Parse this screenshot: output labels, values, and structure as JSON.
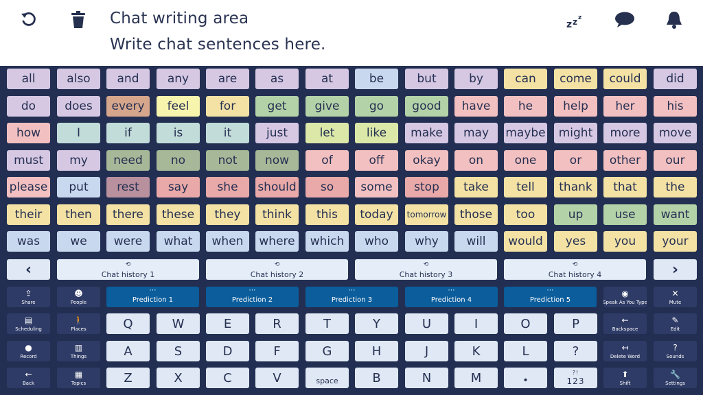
{
  "header": {
    "title": "Chat writing area",
    "message": "Write chat sentences here.",
    "icons": [
      "undo-icon",
      "trash-icon",
      "sleep-icon",
      "speech-bubble-icon",
      "bell-icon"
    ]
  },
  "colors": {
    "background": "#232f52",
    "lilac": "#d6c8e3",
    "yellow": "#f3e2a4",
    "pale_yellow": "#f7f4ae",
    "green": "#b4d2a8",
    "sage": "#a7b898",
    "teal": "#c2dcd9",
    "pink": "#f2c0c0",
    "salmon": "#e8a9a8",
    "rose": "#b8909e",
    "orange": "#d6a68c",
    "blue_key": "#dfe8f4",
    "prediction": "#0b5d9b",
    "side": "#2e3b66"
  },
  "words": [
    [
      {
        "t": "all",
        "c": "#d6c8e3"
      },
      {
        "t": "also",
        "c": "#d6c8e3"
      },
      {
        "t": "and",
        "c": "#d6c8e3"
      },
      {
        "t": "any",
        "c": "#d6c8e3"
      },
      {
        "t": "are",
        "c": "#d6c8e3"
      },
      {
        "t": "as",
        "c": "#d6c8e3"
      },
      {
        "t": "at",
        "c": "#d6c8e3"
      },
      {
        "t": "be",
        "c": "#c8d8ee"
      },
      {
        "t": "but",
        "c": "#d6c8e3"
      },
      {
        "t": "by",
        "c": "#d6c8e3"
      },
      {
        "t": "can",
        "c": "#f3e2a4"
      },
      {
        "t": "come",
        "c": "#f3e2a4"
      },
      {
        "t": "could",
        "c": "#f3e2a4"
      },
      {
        "t": "did",
        "c": "#d6c8e3"
      }
    ],
    [
      {
        "t": "do",
        "c": "#d6c8e3"
      },
      {
        "t": "does",
        "c": "#d6c8e3"
      },
      {
        "t": "every",
        "c": "#d6a68c"
      },
      {
        "t": "feel",
        "c": "#f7f4ae"
      },
      {
        "t": "for",
        "c": "#f3e2a4"
      },
      {
        "t": "get",
        "c": "#b4d2a8"
      },
      {
        "t": "give",
        "c": "#b4d2a8"
      },
      {
        "t": "go",
        "c": "#b4d2a8"
      },
      {
        "t": "good",
        "c": "#b4d2a8"
      },
      {
        "t": "have",
        "c": "#f2c0c0"
      },
      {
        "t": "he",
        "c": "#f2c0c0"
      },
      {
        "t": "help",
        "c": "#f2c0c0"
      },
      {
        "t": "her",
        "c": "#f2c0c0"
      },
      {
        "t": "his",
        "c": "#f2c0c0"
      }
    ],
    [
      {
        "t": "how",
        "c": "#f2c0c0"
      },
      {
        "t": "I",
        "c": "#c2dcd9"
      },
      {
        "t": "if",
        "c": "#c2dcd9"
      },
      {
        "t": "is",
        "c": "#c2dcd9"
      },
      {
        "t": "it",
        "c": "#c2dcd9"
      },
      {
        "t": "just",
        "c": "#d6c8e3"
      },
      {
        "t": "let",
        "c": "#dbe8a8"
      },
      {
        "t": "like",
        "c": "#dbe8a8"
      },
      {
        "t": "make",
        "c": "#d6c8e3"
      },
      {
        "t": "may",
        "c": "#d6c8e3"
      },
      {
        "t": "maybe",
        "c": "#d6c8e3"
      },
      {
        "t": "might",
        "c": "#d6c8e3"
      },
      {
        "t": "more",
        "c": "#d6c8e3"
      },
      {
        "t": "move",
        "c": "#d6c8e3"
      }
    ],
    [
      {
        "t": "must",
        "c": "#d6c8e3"
      },
      {
        "t": "my",
        "c": "#d6c8e3"
      },
      {
        "t": "need",
        "c": "#a7b898"
      },
      {
        "t": "no",
        "c": "#a7b898"
      },
      {
        "t": "not",
        "c": "#a7b898"
      },
      {
        "t": "now",
        "c": "#a7b898"
      },
      {
        "t": "of",
        "c": "#f2c0c0"
      },
      {
        "t": "off",
        "c": "#f2c0c0"
      },
      {
        "t": "okay",
        "c": "#f2c0c0"
      },
      {
        "t": "on",
        "c": "#f2c0c0"
      },
      {
        "t": "one",
        "c": "#f2c0c0"
      },
      {
        "t": "or",
        "c": "#f2c0c0"
      },
      {
        "t": "other",
        "c": "#f2c0c0"
      },
      {
        "t": "our",
        "c": "#f2c0c0"
      }
    ],
    [
      {
        "t": "please",
        "c": "#f2c0c0"
      },
      {
        "t": "put",
        "c": "#c8d8ee"
      },
      {
        "t": "rest",
        "c": "#b8909e"
      },
      {
        "t": "say",
        "c": "#e8a9a8"
      },
      {
        "t": "she",
        "c": "#e8a9a8"
      },
      {
        "t": "should",
        "c": "#e8a9a8"
      },
      {
        "t": "so",
        "c": "#e8a9a8"
      },
      {
        "t": "some",
        "c": "#f2c0c0"
      },
      {
        "t": "stop",
        "c": "#e8a9a8"
      },
      {
        "t": "take",
        "c": "#f3e2a4"
      },
      {
        "t": "tell",
        "c": "#f3e2a4"
      },
      {
        "t": "thank",
        "c": "#f3e2a4"
      },
      {
        "t": "that",
        "c": "#f3e2a4"
      },
      {
        "t": "the",
        "c": "#f3e2a4"
      }
    ],
    [
      {
        "t": "their",
        "c": "#f3e2a4"
      },
      {
        "t": "then",
        "c": "#f3e2a4"
      },
      {
        "t": "there",
        "c": "#f3e2a4"
      },
      {
        "t": "these",
        "c": "#f3e2a4"
      },
      {
        "t": "they",
        "c": "#f3e2a4"
      },
      {
        "t": "think",
        "c": "#f3e2a4"
      },
      {
        "t": "this",
        "c": "#f3e2a4"
      },
      {
        "t": "today",
        "c": "#f3e2a4"
      },
      {
        "t": "tomorrow",
        "c": "#f3e2a4"
      },
      {
        "t": "those",
        "c": "#f3e2a4"
      },
      {
        "t": "too",
        "c": "#f3e2a4"
      },
      {
        "t": "up",
        "c": "#b4d2a8"
      },
      {
        "t": "use",
        "c": "#b4d2a8"
      },
      {
        "t": "want",
        "c": "#b4d2a8"
      }
    ],
    [
      {
        "t": "was",
        "c": "#c8d8ee"
      },
      {
        "t": "we",
        "c": "#c8d8ee"
      },
      {
        "t": "were",
        "c": "#c8d8ee"
      },
      {
        "t": "what",
        "c": "#c8d8ee"
      },
      {
        "t": "when",
        "c": "#c8d8ee"
      },
      {
        "t": "where",
        "c": "#c8d8ee"
      },
      {
        "t": "which",
        "c": "#c8d8ee"
      },
      {
        "t": "who",
        "c": "#c8d8ee"
      },
      {
        "t": "why",
        "c": "#c8d8ee"
      },
      {
        "t": "will",
        "c": "#c8d8ee"
      },
      {
        "t": "would",
        "c": "#f3e2a4"
      },
      {
        "t": "yes",
        "c": "#f3e2a4"
      },
      {
        "t": "you",
        "c": "#f3e2a4"
      },
      {
        "t": "your",
        "c": "#f3e2a4"
      }
    ]
  ],
  "history": {
    "prev_label": "‹",
    "next_label": "›",
    "items": [
      "Chat history 1",
      "Chat history 2",
      "Chat history 3",
      "Chat history 4"
    ],
    "symbol": "⟲"
  },
  "predictions": {
    "dots": "⋯",
    "items": [
      "Prediction 1",
      "Prediction 2",
      "Prediction 3",
      "Prediction 4",
      "Prediction 5"
    ]
  },
  "left_side": [
    [
      {
        "label": "Share",
        "icon": "⇪",
        "name": "share-icon"
      },
      {
        "label": "People",
        "icon": "☻",
        "name": "people-icon"
      }
    ],
    [
      {
        "label": "Scheduling",
        "icon": "▤",
        "name": "calendar-icon"
      },
      {
        "label": "Places",
        "icon": "🚶",
        "name": "walking-person-icon"
      }
    ],
    [
      {
        "label": "Record",
        "icon": "●",
        "name": "microphone-icon"
      },
      {
        "label": "Things",
        "icon": "▥",
        "name": "bag-icon"
      }
    ],
    [
      {
        "label": "Back",
        "icon": "←",
        "name": "arrow-left-icon"
      },
      {
        "label": "Topics",
        "icon": "▦",
        "name": "topics-icon"
      }
    ]
  ],
  "right_side": [
    [
      {
        "label": "Speak As You Type",
        "icon": "◉",
        "name": "eye-icon"
      },
      {
        "label": "Mute",
        "icon": "✕",
        "name": "mute-icon"
      }
    ],
    [
      {
        "label": "Backspace",
        "icon": "←",
        "name": "backspace-icon"
      },
      {
        "label": "Edit",
        "icon": "✎",
        "name": "pencil-icon"
      }
    ],
    [
      {
        "label": "Delete Word",
        "icon": "↤",
        "name": "delete-word-icon"
      },
      {
        "label": "Sounds",
        "icon": "?",
        "name": "question-icon"
      }
    ],
    [
      {
        "label": "Shift",
        "icon": "⬆",
        "name": "shift-icon"
      },
      {
        "label": "Settings",
        "icon": "🔧",
        "name": "wrench-icon"
      }
    ]
  ],
  "keyboard": [
    [
      "Q",
      "W",
      "E",
      "R",
      "T",
      "Y",
      "U",
      "I",
      "O",
      "P"
    ],
    [
      "A",
      "S",
      "D",
      "F",
      "G",
      "H",
      "J",
      "K",
      "L",
      "?"
    ],
    [
      "Z",
      "X",
      "C",
      "V",
      "space",
      "B",
      "N",
      "M",
      "•",
      "123"
    ]
  ],
  "numbers_sup": "?!"
}
